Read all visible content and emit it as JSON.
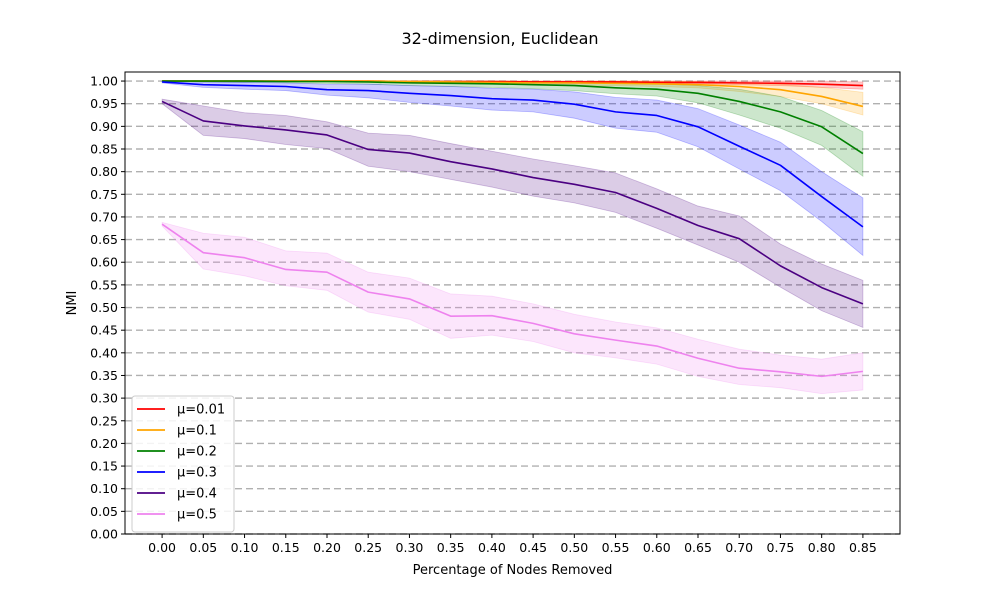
{
  "chart_data": {
    "type": "line",
    "title": "32-dimension, Euclidean",
    "xlabel": "Percentage of Nodes Removed",
    "ylabel": "NMI",
    "xlim": [
      -0.045,
      0.895
    ],
    "ylim": [
      0.0,
      1.02
    ],
    "x": [
      0.0,
      0.05,
      0.1,
      0.15,
      0.2,
      0.25,
      0.3,
      0.35,
      0.4,
      0.45,
      0.5,
      0.55,
      0.6,
      0.65,
      0.7,
      0.75,
      0.8,
      0.85
    ],
    "xtick_labels": [
      "0.00",
      "0.05",
      "0.10",
      "0.15",
      "0.20",
      "0.25",
      "0.30",
      "0.35",
      "0.40",
      "0.45",
      "0.50",
      "0.55",
      "0.60",
      "0.65",
      "0.70",
      "0.75",
      "0.80",
      "0.85"
    ],
    "yticks": [
      0.0,
      0.05,
      0.1,
      0.15,
      0.2,
      0.25,
      0.3,
      0.35,
      0.4,
      0.45,
      0.5,
      0.55,
      0.6,
      0.65,
      0.7,
      0.75,
      0.8,
      0.85,
      0.9,
      0.95,
      1.0
    ],
    "ytick_labels": [
      "0.00",
      "0.05",
      "0.10",
      "0.15",
      "0.20",
      "0.25",
      "0.30",
      "0.35",
      "0.40",
      "0.45",
      "0.50",
      "0.55",
      "0.60",
      "0.65",
      "0.70",
      "0.75",
      "0.80",
      "0.85",
      "0.90",
      "0.95",
      "1.00"
    ],
    "grid": "horizontal dashed",
    "legend_position": "lower-left",
    "series": [
      {
        "name": "μ=0.01",
        "color": "#ff0000",
        "values": [
          1.0,
          1.0,
          1.0,
          1.0,
          1.0,
          1.0,
          0.999,
          0.999,
          0.999,
          0.998,
          0.998,
          0.998,
          0.997,
          0.997,
          0.996,
          0.995,
          0.993,
          0.99
        ],
        "lower": [
          1.0,
          1.0,
          1.0,
          1.0,
          1.0,
          1.0,
          0.998,
          0.998,
          0.997,
          0.996,
          0.995,
          0.995,
          0.994,
          0.994,
          0.992,
          0.99,
          0.986,
          0.982
        ],
        "upper": [
          1.0,
          1.0,
          1.0,
          1.0,
          1.0,
          1.0,
          1.0,
          1.0,
          1.0,
          1.0,
          1.0,
          1.0,
          1.0,
          1.0,
          1.0,
          1.0,
          1.0,
          0.998
        ]
      },
      {
        "name": "μ=0.1",
        "color": "#ffa500",
        "values": [
          1.0,
          1.0,
          1.0,
          1.0,
          1.0,
          1.0,
          0.999,
          0.998,
          0.997,
          0.996,
          0.996,
          0.995,
          0.994,
          0.992,
          0.988,
          0.981,
          0.966,
          0.944
        ],
        "lower": [
          1.0,
          1.0,
          1.0,
          1.0,
          1.0,
          0.999,
          0.997,
          0.995,
          0.994,
          0.992,
          0.991,
          0.99,
          0.988,
          0.985,
          0.977,
          0.966,
          0.95,
          0.925
        ],
        "upper": [
          1.0,
          1.0,
          1.0,
          1.0,
          1.0,
          1.0,
          1.0,
          1.0,
          1.0,
          1.0,
          1.0,
          1.0,
          1.0,
          0.999,
          0.996,
          0.993,
          0.986,
          0.975
        ]
      },
      {
        "name": "μ=0.2",
        "color": "#008000",
        "values": [
          1.0,
          1.0,
          1.0,
          0.999,
          0.999,
          0.998,
          0.996,
          0.995,
          0.994,
          0.992,
          0.99,
          0.985,
          0.982,
          0.973,
          0.955,
          0.932,
          0.899,
          0.84
        ],
        "lower": [
          0.999,
          0.998,
          0.997,
          0.996,
          0.995,
          0.993,
          0.99,
          0.988,
          0.986,
          0.983,
          0.979,
          0.972,
          0.967,
          0.952,
          0.925,
          0.896,
          0.858,
          0.79
        ],
        "upper": [
          1.0,
          1.0,
          1.0,
          1.0,
          1.0,
          1.0,
          1.0,
          1.0,
          1.0,
          0.999,
          0.998,
          0.996,
          0.994,
          0.99,
          0.982,
          0.966,
          0.935,
          0.888
        ]
      },
      {
        "name": "μ=0.3",
        "color": "#0000ff",
        "values": [
          0.998,
          0.992,
          0.99,
          0.988,
          0.981,
          0.979,
          0.973,
          0.968,
          0.961,
          0.958,
          0.949,
          0.932,
          0.924,
          0.899,
          0.856,
          0.814,
          0.745,
          0.678
        ],
        "lower": [
          0.996,
          0.986,
          0.982,
          0.979,
          0.969,
          0.963,
          0.953,
          0.945,
          0.936,
          0.932,
          0.918,
          0.896,
          0.887,
          0.855,
          0.806,
          0.758,
          0.69,
          0.615
        ],
        "upper": [
          1.0,
          0.998,
          0.997,
          0.996,
          0.993,
          0.993,
          0.99,
          0.988,
          0.984,
          0.982,
          0.976,
          0.964,
          0.958,
          0.939,
          0.903,
          0.865,
          0.8,
          0.742
        ]
      },
      {
        "name": "μ=0.4",
        "color": "#4b0082",
        "values": [
          0.955,
          0.912,
          0.901,
          0.892,
          0.881,
          0.849,
          0.841,
          0.822,
          0.806,
          0.787,
          0.772,
          0.754,
          0.719,
          0.681,
          0.652,
          0.592,
          0.544,
          0.508
        ],
        "lower": [
          0.95,
          0.88,
          0.873,
          0.86,
          0.851,
          0.812,
          0.8,
          0.783,
          0.766,
          0.746,
          0.731,
          0.71,
          0.675,
          0.638,
          0.6,
          0.545,
          0.493,
          0.456
        ],
        "upper": [
          0.96,
          0.945,
          0.93,
          0.924,
          0.91,
          0.885,
          0.88,
          0.862,
          0.845,
          0.828,
          0.813,
          0.797,
          0.762,
          0.724,
          0.702,
          0.64,
          0.596,
          0.56
        ]
      },
      {
        "name": "μ=0.5",
        "color": "#ee82ee",
        "values": [
          0.684,
          0.621,
          0.61,
          0.584,
          0.578,
          0.534,
          0.519,
          0.481,
          0.482,
          0.465,
          0.442,
          0.428,
          0.415,
          0.388,
          0.366,
          0.358,
          0.348,
          0.359
        ],
        "lower": [
          0.68,
          0.585,
          0.57,
          0.548,
          0.538,
          0.49,
          0.474,
          0.432,
          0.439,
          0.425,
          0.4,
          0.389,
          0.375,
          0.348,
          0.33,
          0.323,
          0.31,
          0.318
        ],
        "upper": [
          0.688,
          0.664,
          0.655,
          0.625,
          0.62,
          0.578,
          0.565,
          0.53,
          0.525,
          0.508,
          0.485,
          0.468,
          0.455,
          0.43,
          0.408,
          0.395,
          0.386,
          0.4
        ]
      }
    ]
  }
}
